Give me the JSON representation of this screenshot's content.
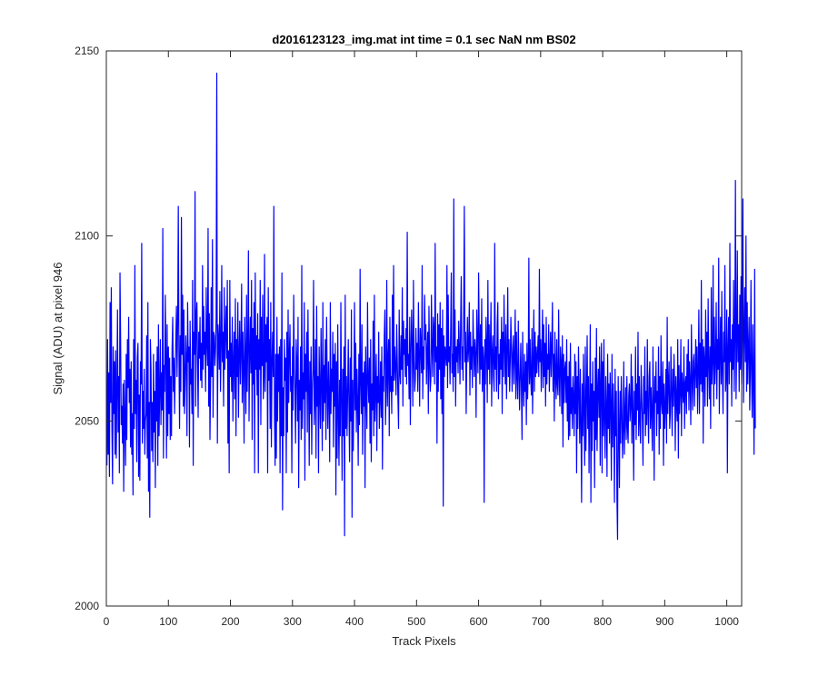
{
  "chart_data": {
    "type": "line",
    "title": "d2016123123_img.mat int time = 0.1 sec  NaN nm BS02",
    "xlabel": "Track Pixels",
    "ylabel": "Signal (ADU) at pixel 946",
    "xlim": [
      0,
      1024
    ],
    "ylim": [
      2000,
      2150
    ],
    "xticks": [
      0,
      100,
      200,
      300,
      400,
      500,
      600,
      700,
      800,
      900,
      1000
    ],
    "yticks": [
      2000,
      2050,
      2100,
      2150
    ],
    "grid": false,
    "legend": "none",
    "series": [
      {
        "color": "#0000ff",
        "x_start": 1,
        "x_step": 1,
        "values": [
          2038,
          2072,
          2041,
          2063,
          2035,
          2082,
          2055,
          2086,
          2048,
          2033,
          2070,
          2052,
          2066,
          2041,
          2069,
          2040,
          2058,
          2080,
          2047,
          2062,
          2036,
          2090,
          2072,
          2049,
          2054,
          2044,
          2060,
          2031,
          2061,
          2050,
          2038,
          2068,
          2045,
          2072,
          2059,
          2078,
          2055,
          2064,
          2043,
          2066,
          2041,
          2052,
          2030,
          2072,
          2048,
          2092,
          2052,
          2061,
          2039,
          2067,
          2071,
          2035,
          2057,
          2034,
          2066,
          2060,
          2098,
          2044,
          2058,
          2048,
          2064,
          2041,
          2050,
          2052,
          2073,
          2040,
          2082,
          2031,
          2055,
          2024,
          2072,
          2064,
          2042,
          2055,
          2039,
          2068,
          2047,
          2058,
          2032,
          2066,
          2050,
          2070,
          2038,
          2076,
          2046,
          2058,
          2072,
          2049,
          2063,
          2053,
          2102,
          2040,
          2065,
          2058,
          2084,
          2068,
          2040,
          2076,
          2046,
          2070,
          2052,
          2067,
          2045,
          2062,
          2046,
          2070,
          2078,
          2058,
          2067,
          2052,
          2064,
          2072,
          2081,
          2062,
          2077,
          2108,
          2068,
          2048,
          2073,
          2058,
          2105,
          2068,
          2084,
          2054,
          2080,
          2052,
          2060,
          2073,
          2067,
          2046,
          2082,
          2066,
          2070,
          2043,
          2077,
          2060,
          2064,
          2052,
          2088,
          2038,
          2074,
          2068,
          2112,
          2054,
          2078,
          2082,
          2066,
          2051,
          2074,
          2067,
          2078,
          2061,
          2071,
          2059,
          2092,
          2064,
          2081,
          2068,
          2074,
          2058,
          2086,
          2071,
          2065,
          2102,
          2054,
          2079,
          2045,
          2060,
          2086,
          2062,
          2099,
          2051,
          2074,
          2073,
          2065,
          2069,
          2078,
          2144,
          2044,
          2076,
          2072,
          2064,
          2085,
          2058,
          2070,
          2092,
          2066,
          2074,
          2054,
          2086,
          2064,
          2073,
          2081,
          2067,
          2088,
          2044,
          2069,
          2036,
          2088,
          2062,
          2071,
          2058,
          2078,
          2050,
          2066,
          2074,
          2056,
          2083,
          2046,
          2072,
          2062,
          2082,
          2051,
          2068,
          2077,
          2060,
          2069,
          2087,
          2055,
          2074,
          2065,
          2044,
          2078,
          2068,
          2052,
          2084,
          2058,
          2071,
          2096,
          2050,
          2067,
          2078,
          2063,
          2088,
          2045,
          2075,
          2060,
          2082,
          2036,
          2090,
          2064,
          2073,
          2057,
          2079,
          2036,
          2072,
          2064,
          2088,
          2049,
          2078,
          2065,
          2084,
          2056,
          2062,
          2095,
          2058,
          2076,
          2066,
          2078,
          2036,
          2086,
          2061,
          2072,
          2048,
          2082,
          2043,
          2066,
          2074,
          2062,
          2108,
          2052,
          2038,
          2068,
          2040,
          2078,
          2050,
          2068,
          2058,
          2070,
          2036,
          2072,
          2046,
          2090,
          2026,
          2059,
          2046,
          2072,
          2061,
          2067,
          2036,
          2074,
          2047,
          2080,
          2055,
          2068,
          2076,
          2058,
          2062,
          2036,
          2070,
          2053,
          2084,
          2064,
          2058,
          2044,
          2072,
          2066,
          2050,
          2078,
          2032,
          2061,
          2053,
          2070,
          2045,
          2092,
          2048,
          2063,
          2056,
          2082,
          2034,
          2068,
          2058,
          2074,
          2047,
          2080,
          2060,
          2038,
          2066,
          2052,
          2070,
          2041,
          2059,
          2064,
          2088,
          2049,
          2057,
          2072,
          2040,
          2081,
          2054,
          2062,
          2036,
          2070,
          2058,
          2048,
          2075,
          2060,
          2042,
          2082,
          2050,
          2065,
          2055,
          2072,
          2045,
          2078,
          2060,
          2048,
          2066,
          2056,
          2039,
          2082,
          2052,
          2064,
          2058,
          2074,
          2043,
          2068,
          2054,
          2071,
          2030,
          2066,
          2040,
          2076,
          2052,
          2038,
          2061,
          2046,
          2082,
          2056,
          2034,
          2064,
          2046,
          2070,
          2019,
          2084,
          2048,
          2062,
          2046,
          2058,
          2072,
          2054,
          2039,
          2067,
          2050,
          2080,
          2024,
          2061,
          2042,
          2058,
          2082,
          2053,
          2071,
          2047,
          2064,
          2055,
          2038,
          2068,
          2049,
          2091,
          2060,
          2052,
          2076,
          2041,
          2063,
          2054,
          2066,
          2032,
          2070,
          2058,
          2048,
          2082,
          2061,
          2055,
          2067,
          2044,
          2072,
          2039,
          2060,
          2053,
          2077,
          2046,
          2084,
          2050,
          2058,
          2068,
          2042,
          2062,
          2055,
          2074,
          2048,
          2056,
          2066,
          2051,
          2070,
          2037,
          2062,
          2058,
          2073,
          2080,
          2049,
          2060,
          2088,
          2054,
          2066,
          2072,
          2046,
          2078,
          2058,
          2062,
          2052,
          2084,
          2058,
          2092,
          2061,
          2070,
          2064,
          2057,
          2076,
          2066,
          2056,
          2048,
          2080,
          2063,
          2060,
          2073,
          2064,
          2086,
          2054,
          2077,
          2068,
          2072,
          2062,
          2075,
          2060,
          2101,
          2065,
          2068,
          2056,
          2078,
          2049,
          2069,
          2080,
          2070,
          2054,
          2088,
          2066,
          2058,
          2061,
          2075,
          2064,
          2071,
          2058,
          2082,
          2068,
          2054,
          2075,
          2070,
          2063,
          2092,
          2056,
          2070,
          2064,
          2084,
          2072,
          2076,
          2060,
          2069,
          2074,
          2052,
          2081,
          2066,
          2058,
          2061,
          2084,
          2070,
          2062,
          2078,
          2074,
          2060,
          2098,
          2066,
          2070,
          2044,
          2079,
          2058,
          2076,
          2064,
          2082,
          2056,
          2075,
          2052,
          2080,
          2027,
          2073,
          2062,
          2070,
          2068,
          2065,
          2092,
          2059,
          2084,
          2066,
          2070,
          2060,
          2074,
          2090,
          2063,
          2068,
          2058,
          2110,
          2062,
          2080,
          2054,
          2070,
          2066,
          2072,
          2063,
          2077,
          2070,
          2060,
          2076,
          2089,
          2064,
          2070,
          2061,
          2080,
          2108,
          2066,
          2074,
          2052,
          2068,
          2078,
          2066,
          2070,
          2082,
          2057,
          2074,
          2064,
          2070,
          2059,
          2080,
          2070,
          2062,
          2072,
          2068,
          2051,
          2080,
          2071,
          2063,
          2090,
          2074,
          2060,
          2076,
          2064,
          2083,
          2058,
          2070,
          2067,
          2028,
          2072,
          2060,
          2078,
          2070,
          2055,
          2088,
          2064,
          2076,
          2060,
          2071,
          2082,
          2054,
          2068,
          2073,
          2062,
          2058,
          2098,
          2064,
          2070,
          2058,
          2076,
          2082,
          2056,
          2068,
          2060,
          2072,
          2064,
          2078,
          2052,
          2074,
          2062,
          2084,
          2070,
          2060,
          2076,
          2056,
          2069,
          2086,
          2062,
          2072,
          2058,
          2066,
          2078,
          2070,
          2058,
          2068,
          2073,
          2060,
          2067,
          2080,
          2056,
          2074,
          2062,
          2056,
          2077,
          2064,
          2053,
          2062,
          2071,
          2059,
          2045,
          2074,
          2060,
          2054,
          2068,
          2058,
          2066,
          2049,
          2071,
          2056,
          2064,
          2094,
          2060,
          2072,
          2062,
          2057,
          2075,
          2052,
          2066,
          2080,
          2058,
          2074,
          2062,
          2070,
          2063,
          2068,
          2073,
          2062,
          2091,
          2066,
          2072,
          2058,
          2068,
          2080,
          2059,
          2076,
          2062,
          2071,
          2054,
          2078,
          2060,
          2068,
          2064,
          2076,
          2058,
          2066,
          2074,
          2062,
          2070,
          2082,
          2058,
          2068,
          2050,
          2074,
          2063,
          2056,
          2072,
          2060,
          2057,
          2080,
          2062,
          2054,
          2070,
          2066,
          2052,
          2073,
          2043,
          2068,
          2055,
          2064,
          2066,
          2055,
          2072,
          2050,
          2062,
          2045,
          2066,
          2046,
          2071,
          2052,
          2059,
          2048,
          2062,
          2056,
          2046,
          2068,
          2052,
          2066,
          2036,
          2062,
          2048,
          2070,
          2058,
          2044,
          2064,
          2050,
          2028,
          2060,
          2046,
          2068,
          2052,
          2038,
          2070,
          2042,
          2056,
          2073,
          2048,
          2062,
          2036,
          2055,
          2076,
          2028,
          2060,
          2042,
          2066,
          2050,
          2058,
          2032,
          2067,
          2045,
          2075,
          2042,
          2058,
          2064,
          2051,
          2070,
          2038,
          2060,
          2071,
          2036,
          2066,
          2046,
          2072,
          2050,
          2040,
          2062,
          2054,
          2035,
          2068,
          2048,
          2060,
          2044,
          2063,
          2054,
          2034,
          2068,
          2043,
          2060,
          2050,
          2028,
          2064,
          2046,
          2058,
          2029,
          2018,
          2062,
          2048,
          2032,
          2058,
          2044,
          2062,
          2053,
          2040,
          2048,
          2066,
          2041,
          2052,
          2059,
          2045,
          2062,
          2048,
          2044,
          2057,
          2060,
          2050,
          2054,
          2068,
          2044,
          2062,
          2052,
          2034,
          2058,
          2049,
          2070,
          2045,
          2060,
          2053,
          2074,
          2046,
          2062,
          2050,
          2044,
          2065,
          2056,
          2050,
          2038,
          2062,
          2052,
          2070,
          2046,
          2058,
          2049,
          2072,
          2054,
          2044,
          2062,
          2066,
          2048,
          2059,
          2052,
          2042,
          2070,
          2056,
          2034,
          2062,
          2055,
          2066,
          2046,
          2058,
          2052,
          2070,
          2041,
          2062,
          2048,
          2073,
          2055,
          2052,
          2066,
          2038,
          2060,
          2048,
          2054,
          2064,
          2044,
          2078,
          2052,
          2060,
          2066,
          2048,
          2052,
          2070,
          2058,
          2046,
          2064,
          2054,
          2068,
          2060,
          2042,
          2062,
          2055,
          2050,
          2072,
          2040,
          2065,
          2052,
          2058,
          2072,
          2046,
          2063,
          2058,
          2055,
          2070,
          2048,
          2060,
          2062,
          2052,
          2068,
          2058,
          2072,
          2053,
          2066,
          2060,
          2049,
          2076,
          2062,
          2053,
          2066,
          2068,
          2054,
          2063,
          2072,
          2059,
          2070,
          2052,
          2064,
          2080,
          2052,
          2071,
          2060,
          2088,
          2058,
          2072,
          2044,
          2070,
          2066,
          2054,
          2080,
          2062,
          2074,
          2054,
          2083,
          2066,
          2056,
          2070,
          2048,
          2086,
          2060,
          2066,
          2092,
          2054,
          2078,
          2060,
          2066,
          2082,
          2056,
          2072,
          2064,
          2094,
          2052,
          2068,
          2078,
          2060,
          2085,
          2063,
          2052,
          2074,
          2066,
          2092,
          2058,
          2062,
          2080,
          2036,
          2070,
          2078,
          2060,
          2098,
          2066,
          2072,
          2054,
          2076,
          2064,
          2088,
          2058,
          2072,
          2115,
          2056,
          2070,
          2096,
          2066,
          2076,
          2058,
          2084,
          2064,
          2089,
          2060,
          2073,
          2110,
          2055,
          2072,
          2086,
          2066,
          2100,
          2058,
          2082,
          2060,
          2070,
          2078,
          2053,
          2064,
          2088,
          2062,
          2051,
          2076,
          2060,
          2041,
          2091,
          2048
        ]
      }
    ]
  }
}
